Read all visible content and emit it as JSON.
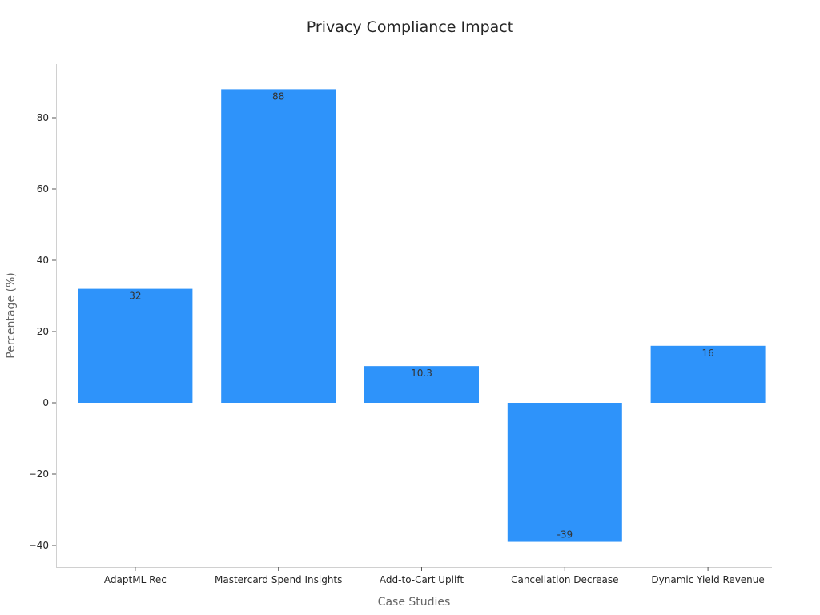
{
  "chart_data": {
    "type": "bar",
    "title": "Privacy Compliance Impact",
    "xlabel": "Case Studies",
    "ylabel": "Percentage (%)",
    "categories": [
      "AdaptML Rec",
      "Mastercard Spend Insights",
      "Add-to-Cart Uplift",
      "Cancellation Decrease",
      "Dynamic Yield Revenue"
    ],
    "values": [
      32,
      88,
      10.3,
      -39,
      16
    ],
    "data_labels": [
      "32",
      "88",
      "10.3",
      "-39",
      "16"
    ],
    "yticks": [
      -40,
      -20,
      0,
      20,
      40,
      60,
      80
    ],
    "ytick_labels": [
      "−40",
      "−20",
      "0",
      "20",
      "40",
      "60",
      "80"
    ],
    "ylim": [
      -46,
      95
    ],
    "grid": false,
    "bar_color": "#2e93fa"
  }
}
